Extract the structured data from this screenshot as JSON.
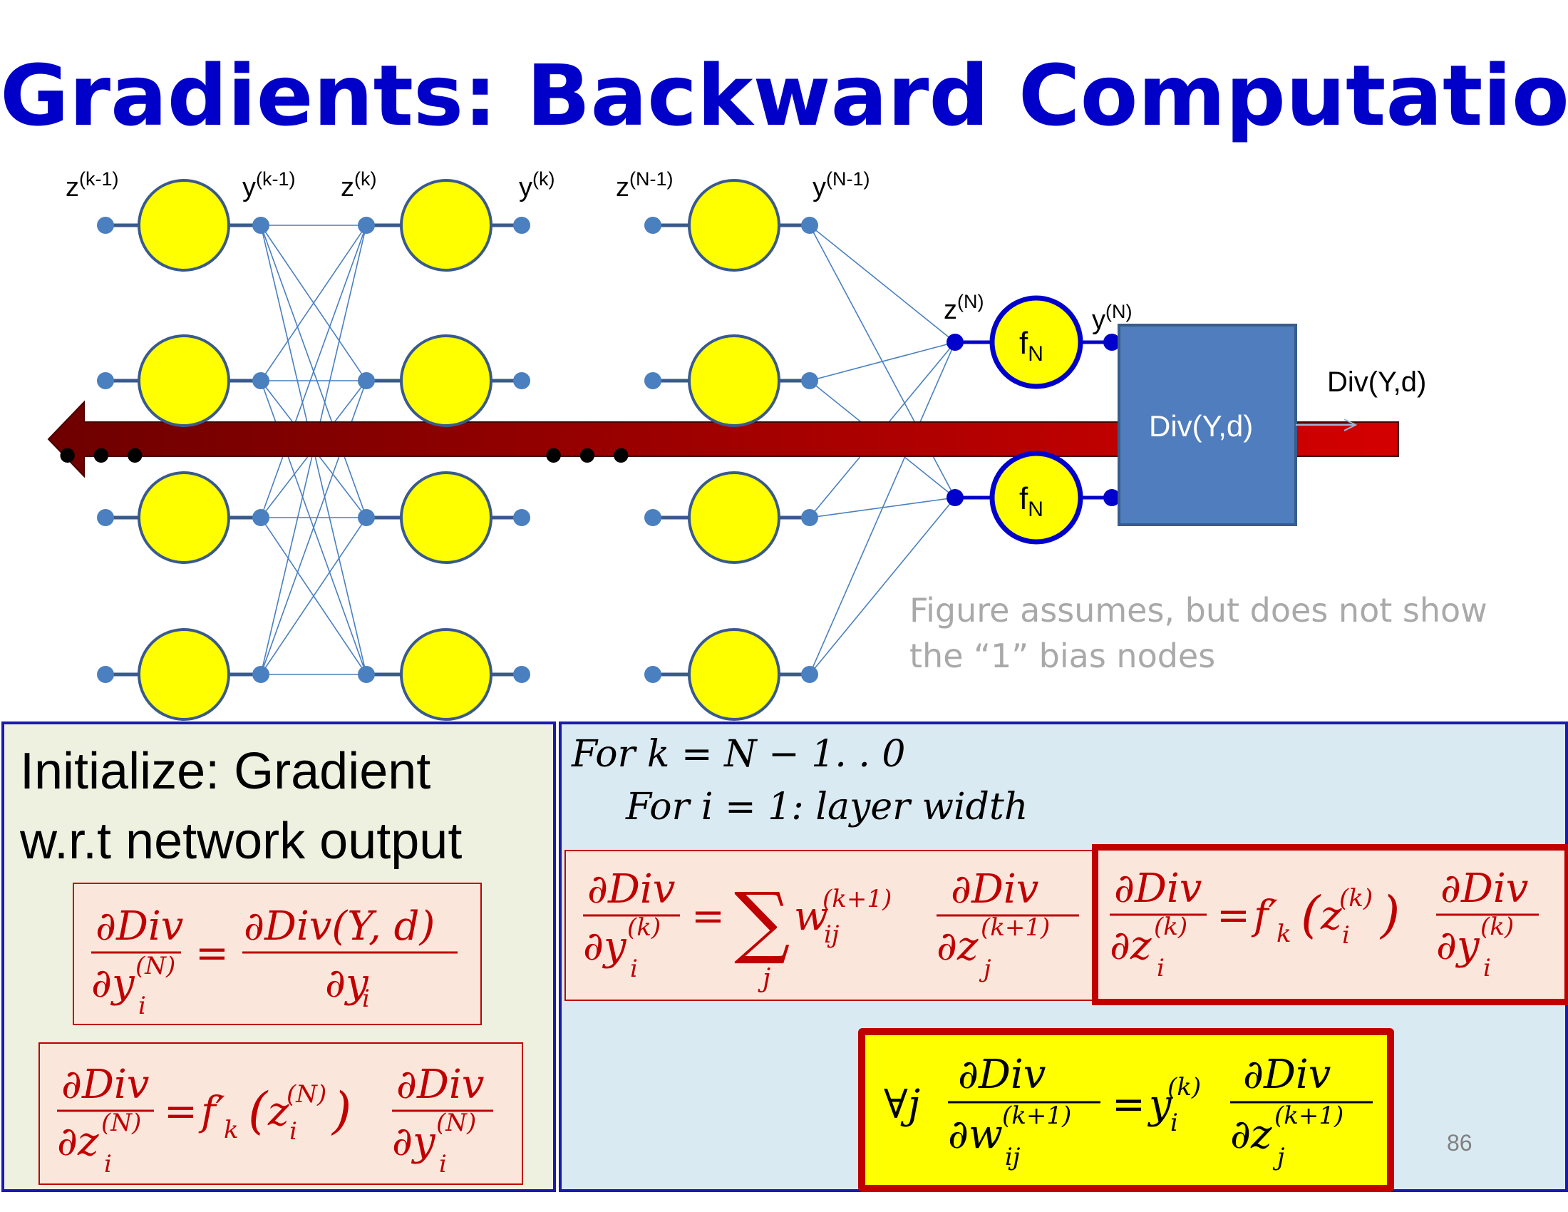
{
  "slide": {
    "title": "Gradients: Backward Computation",
    "page_number": "86"
  },
  "network": {
    "layer_labels": {
      "z_k_minus_1": {
        "base": "z",
        "sup": "(k-1)"
      },
      "y_k_minus_1": {
        "base": "y",
        "sup": "(k-1)"
      },
      "z_k": {
        "base": "z",
        "sup": "(k)"
      },
      "y_k": {
        "base": "y",
        "sup": "(k)"
      },
      "z_N_minus_1": {
        "base": "z",
        "sup": "(N-1)"
      },
      "y_N_minus_1": {
        "base": "y",
        "sup": "(N-1)"
      },
      "z_N": {
        "base": "z",
        "sup": "(N)"
      },
      "y_N": {
        "base": "y",
        "sup": "(N)"
      }
    },
    "output_node_label": {
      "base": "f",
      "sub": "N"
    },
    "divergence_box_label": "Div(Y,d)",
    "divergence_output_label": "Div(Y,d)",
    "ellipsis": "•••",
    "note_lines": [
      "Figure assumes, but does not show",
      "the “1” bias nodes"
    ],
    "colors": {
      "neuron_fill": "#ffff00",
      "neuron_stroke": "#3a5a8c",
      "output_neuron_stroke": "#0000cc",
      "link": "#4a7fc0",
      "div_box": "#4f7dbd",
      "arrow_dark": "#6e0000",
      "arrow_light": "#d40000"
    }
  },
  "left_panel": {
    "heading_line1": "Initialize: Gradient",
    "heading_line2": "w.r.t  network output",
    "eq1": {
      "num_left": "∂Div",
      "den_left": "∂y",
      "den_left_sup": "(N)",
      "den_left_sub": "i",
      "eq": "=",
      "num_right": "∂Div(Y, d)",
      "den_right": "∂y",
      "den_right_sub": "i"
    },
    "eq2": {
      "num_left": "∂Div",
      "den_left": "∂z",
      "den_left_sup": "(N)",
      "den_left_sub": "i",
      "eq": "=",
      "fprime": "f′",
      "fprime_sub": "k",
      "arg": "z",
      "arg_sup": "(N)",
      "arg_sub": "i",
      "num_right": "∂Div",
      "den_right": "∂y",
      "den_right_sup": "(N)",
      "den_right_sub": "i"
    }
  },
  "right_panel": {
    "loop1": "For k  =  N − 1. . 0",
    "loop2": "For i  =  1: layer width",
    "eq_sum": {
      "num_left": "∂Div",
      "den_left": "∂y",
      "den_left_sup": "(k)",
      "den_left_sub": "i",
      "eq": "=",
      "sum": "∑",
      "sum_sub": "j",
      "w": "w",
      "w_sup": "(k+1)",
      "w_sub": "ij",
      "num_right": "∂Div",
      "den_right": "∂z",
      "den_right_sup": "(k+1)",
      "den_right_sub": "j"
    },
    "eq_act": {
      "num_left": "∂Div",
      "den_left": "∂z",
      "den_left_sup": "(k)",
      "den_left_sub": "i",
      "eq": "=",
      "fprime": "f′",
      "fprime_sub": "k",
      "arg": "z",
      "arg_sup": "(k)",
      "arg_sub": "i",
      "num_right": "∂Div",
      "den_right": "∂y",
      "den_right_sup": "(k)",
      "den_right_sub": "i"
    },
    "eq_weight": {
      "forall": "∀j",
      "num_left": "∂Div",
      "den_left": "∂w",
      "den_left_sup": "(k+1)",
      "den_left_sub": "ij",
      "eq": "=",
      "y": "y",
      "y_sup": "(k)",
      "y_sub": "i",
      "num_right": "∂Div",
      "den_right": "∂z",
      "den_right_sup": "(k+1)",
      "den_right_sub": "j"
    }
  }
}
